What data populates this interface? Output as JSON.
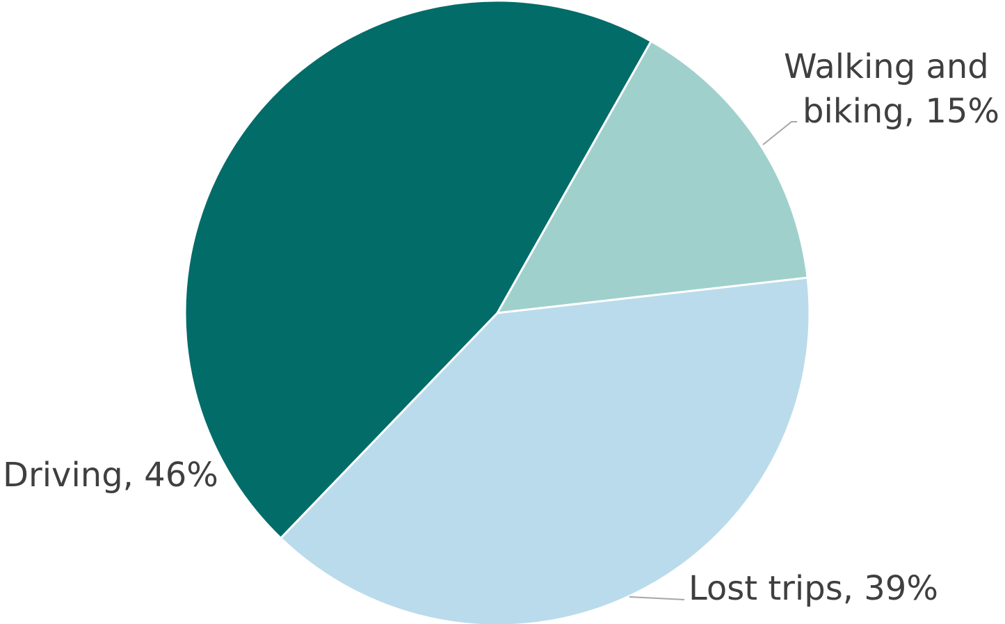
{
  "chart_data": {
    "type": "pie",
    "slices": [
      {
        "label": "Walking and biking",
        "value": 15,
        "color": "#a0d0cc",
        "label_lines": [
          "Walking and",
          "biking, 15%"
        ]
      },
      {
        "label": "Lost trips",
        "value": 39,
        "color": "#badbeb",
        "label_lines": [
          "Lost trips, 39%"
        ]
      },
      {
        "label": "Driving",
        "value": 46,
        "color": "#026c69",
        "label_lines": [
          "Driving, 46%"
        ]
      }
    ],
    "unit": "%",
    "separator_color": "#ffffff",
    "leader_line_color": "#a6a6a6",
    "label_color": "#3f3f3f"
  }
}
